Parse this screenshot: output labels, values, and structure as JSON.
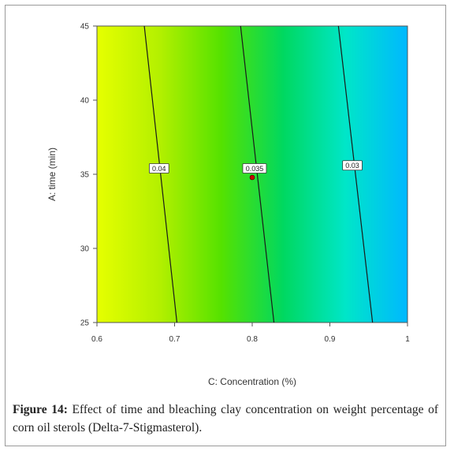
{
  "caption": {
    "label": "Figure 14:",
    "text": "Effect of time and bleaching clay concentration on weight percentage of corn oil sterols (Delta-7-Stigmasterol)."
  },
  "chart_data": {
    "type": "contour",
    "xlabel": "C: Concentration (%)",
    "ylabel": "A: time (min)",
    "xlim": [
      0.6,
      1.0
    ],
    "ylim": [
      25,
      45
    ],
    "x_ticks": [
      0.6,
      0.7,
      0.8,
      0.9,
      1.0
    ],
    "x_tick_labels": [
      "0.6",
      "0.7",
      "0.8",
      "0.9",
      "1"
    ],
    "y_ticks": [
      25,
      30,
      35,
      40,
      45
    ],
    "y_tick_labels": [
      "25",
      "30",
      "35",
      "40",
      "45"
    ],
    "colormap": [
      "#e6ff00",
      "#b4f000",
      "#55e200",
      "#00d860",
      "#00e6c8",
      "#00b8ff"
    ],
    "contours": [
      {
        "level": "0.04",
        "points": [
          [
            0.661,
            45
          ],
          [
            0.703,
            25
          ]
        ],
        "label_at": [
          0.68,
          35.4
        ]
      },
      {
        "level": "0.035",
        "points": [
          [
            0.785,
            45
          ],
          [
            0.828,
            25
          ]
        ],
        "label_at": [
          0.803,
          35.4
        ]
      },
      {
        "level": "0.03",
        "points": [
          [
            0.911,
            45
          ],
          [
            0.955,
            25
          ]
        ],
        "label_at": [
          0.929,
          35.6
        ]
      }
    ],
    "design_point": [
      0.8,
      35
    ]
  }
}
